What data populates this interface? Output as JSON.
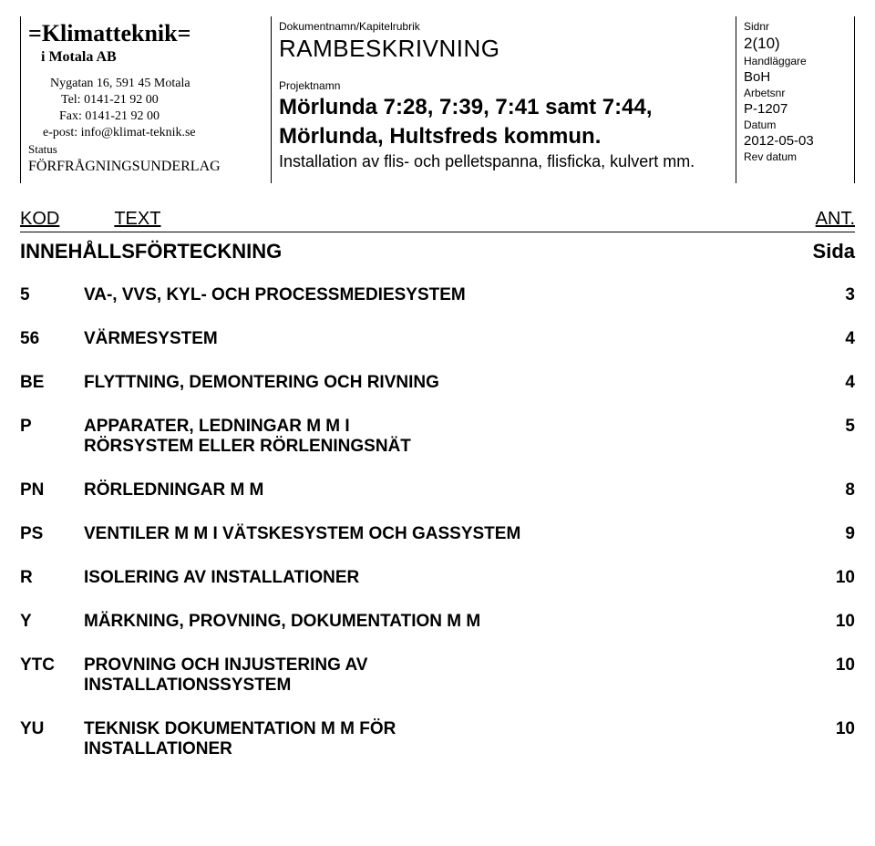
{
  "header": {
    "brand": "=Klimatteknik=",
    "brand_fontsize": 26,
    "subbrand": "i Motala AB",
    "subbrand_fontsize": 16,
    "address": "Nygatan 16, 591 45  Motala",
    "tel": "Tel: 0141-21 92 00",
    "fax": "Fax: 0141-21 92 00",
    "email": "e-post: info@klimat-teknik.se",
    "status_label": "Status",
    "status_value": "FÖRFRÅGNINGSUNDERLAG",
    "addr_fontsize": 14
  },
  "mid": {
    "docname_label": "Dokumentnamn/Kapitelrubrik",
    "docname_value": "RAMBESKRIVNING",
    "proj_label": "Projektnamn",
    "proj_line1": "Mörlunda 7:28, 7:39, 7:41 samt 7:44,",
    "proj_line2": "Mörlunda, Hultsfreds kommun.",
    "install_line": "Installation av flis- och pelletspanna, flisficka, kulvert mm."
  },
  "right": {
    "sidnr_label": "Sidnr",
    "sidnr_value": "2(10)",
    "hand_label": "Handläggare",
    "hand_value": "BoH",
    "arbets_label": "Arbetsnr",
    "arbets_value": "P-1207",
    "datum_label": "Datum",
    "datum_value": "2012-05-03",
    "rev_label": "Rev datum",
    "rev_value": ""
  },
  "kod": {
    "kod_label": "KOD",
    "text_label": "TEXT",
    "ant_label": "ANT."
  },
  "toc_title": {
    "left": "INNEHÅLLSFÖRTECKNING",
    "right": "Sida"
  },
  "toc": [
    {
      "code": "5",
      "label": "VA-, VVS, KYL- OCH PROCESSMEDIESYSTEM",
      "label2": "",
      "page": "3"
    },
    {
      "code": "56",
      "label": "VÄRMESYSTEM",
      "label2": "",
      "page": "4"
    },
    {
      "code": "BE",
      "label": "FLYTTNING, DEMONTERING OCH RIVNING",
      "label2": "",
      "page": "4"
    },
    {
      "code": "P",
      "label": "APPARATER, LEDNINGAR M M I",
      "label2": "RÖRSYSTEM ELLER RÖRLENINGSNÄT",
      "page": "5"
    },
    {
      "code": "PN",
      "label": "RÖRLEDNINGAR M M",
      "label2": "",
      "page": "8"
    },
    {
      "code": "PS",
      "label": "VENTILER M M I VÄTSKESYSTEM OCH GASSYSTEM",
      "label2": "",
      "page": "9"
    },
    {
      "code": "R",
      "label": "ISOLERING AV INSTALLATIONER",
      "label2": "",
      "page": "10"
    },
    {
      "code": "Y",
      "label": "MÄRKNING, PROVNING, DOKUMENTATION M M",
      "label2": "",
      "page": "10"
    },
    {
      "code": "YTC",
      "label": "PROVNING OCH INJUSTERING AV",
      "label2": "INSTALLATIONSSYSTEM",
      "page": "10"
    },
    {
      "code": "YU",
      "label": "TEKNISK DOKUMENTATION M M FÖR",
      "label2": "INSTALLATIONER",
      "page": "10"
    }
  ],
  "style": {
    "text_color": "#000000",
    "bg_color": "#ffffff",
    "border_color": "#000000"
  }
}
